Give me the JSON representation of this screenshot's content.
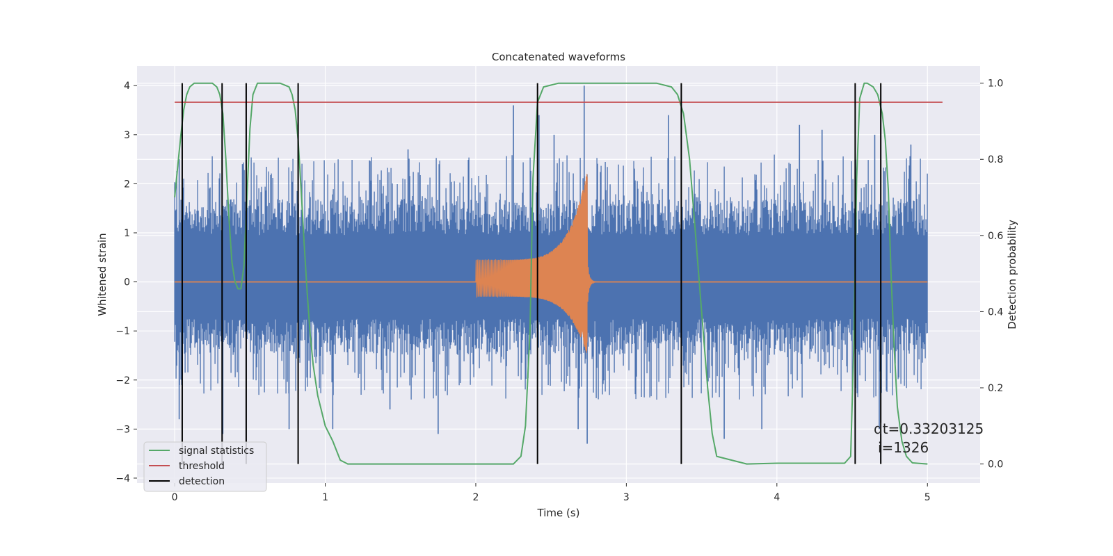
{
  "chart_data": {
    "type": "line",
    "title": "Concatenated waveforms",
    "xlabel": "Time (s)",
    "ylabel": "Whitened strain",
    "y2label": "Detection probability",
    "xlim": [
      -0.25,
      5.35
    ],
    "ylim": [
      -4.1,
      4.4
    ],
    "y2lim": [
      -0.05,
      1.045
    ],
    "xticks": [
      0,
      1,
      2,
      3,
      4,
      5
    ],
    "yticks": [
      -4,
      -3,
      -2,
      -1,
      0,
      1,
      2,
      3,
      4
    ],
    "y2ticks": [
      0.0,
      0.2,
      0.4,
      0.6,
      0.8,
      1.0
    ],
    "xtick_labels": [
      "0",
      "1",
      "2",
      "3",
      "4",
      "5"
    ],
    "ytick_labels": [
      "−4",
      "−3",
      "−2",
      "−1",
      "0",
      "1",
      "2",
      "3",
      "4"
    ],
    "y2tick_labels": [
      "0.0",
      "0.2",
      "0.4",
      "0.6",
      "0.8",
      "1.0"
    ],
    "grid": true,
    "background": "#eaeaf2",
    "legend_position": "lower-left",
    "series": [
      {
        "kind": "noise_envelope",
        "color": "#4c72b0",
        "x_range": [
          0,
          5
        ],
        "band": [
          -0.75,
          0.95
        ],
        "max_envelope": 2.6,
        "min_envelope": -2.4,
        "spikes": [
          [
            0.03,
            2.5
          ],
          [
            0.03,
            -2.8
          ],
          [
            0.32,
            -3.1
          ],
          [
            0.45,
            2.4
          ],
          [
            0.76,
            -3.0
          ],
          [
            1.05,
            -3.0
          ],
          [
            1.43,
            -2.6
          ],
          [
            1.55,
            2.7
          ],
          [
            1.75,
            -3.1
          ],
          [
            2.25,
            3.6
          ],
          [
            2.42,
            3.4
          ],
          [
            2.52,
            3.0
          ],
          [
            2.72,
            4.0
          ],
          [
            2.74,
            -3.3
          ],
          [
            2.68,
            -3.0
          ],
          [
            3.28,
            3.4
          ],
          [
            3.65,
            -3.2
          ],
          [
            3.9,
            -3.0
          ],
          [
            4.15,
            3.2
          ],
          [
            4.3,
            3.1
          ],
          [
            4.65,
            3.0
          ],
          [
            4.68,
            -3.0
          ],
          [
            4.89,
            2.8
          ]
        ]
      },
      {
        "kind": "chirp",
        "color": "#dd8452",
        "x_range": [
          0,
          5
        ],
        "chirp_start": 2.0,
        "merger": 2.74,
        "amp_start": 0.45,
        "amp_peak": 2.25,
        "amp_min_peak": -1.5
      },
      {
        "name": "signal statistics",
        "axis": "right",
        "color": "#55a868",
        "x": [
          0,
          0.02,
          0.04,
          0.06,
          0.08,
          0.1,
          0.13,
          0.16,
          0.2,
          0.25,
          0.28,
          0.3,
          0.32,
          0.34,
          0.36,
          0.38,
          0.4,
          0.42,
          0.44,
          0.46,
          0.48,
          0.5,
          0.52,
          0.55,
          0.6,
          0.7,
          0.76,
          0.78,
          0.8,
          0.82,
          0.84,
          0.86,
          0.88,
          0.9,
          0.92,
          0.95,
          1.0,
          1.05,
          1.08,
          1.1,
          1.15,
          2.0,
          2.25,
          2.3,
          2.33,
          2.36,
          2.38,
          2.41,
          2.45,
          2.55,
          3.2,
          3.3,
          3.34,
          3.38,
          3.42,
          3.46,
          3.5,
          3.54,
          3.57,
          3.6,
          3.8,
          4.0,
          4.45,
          4.49,
          4.51,
          4.53,
          4.55,
          4.58,
          4.6,
          4.64,
          4.67,
          4.7,
          4.72,
          4.74,
          4.76,
          4.78,
          4.8,
          4.83,
          4.86,
          4.9,
          5.0
        ],
        "y": [
          0.7,
          0.78,
          0.86,
          0.93,
          0.97,
          0.99,
          1.0,
          1.0,
          1.0,
          1.0,
          0.99,
          0.97,
          0.92,
          0.8,
          0.65,
          0.53,
          0.48,
          0.46,
          0.46,
          0.52,
          0.7,
          0.88,
          0.97,
          1.0,
          1.0,
          1.0,
          0.99,
          0.97,
          0.93,
          0.85,
          0.72,
          0.58,
          0.45,
          0.34,
          0.26,
          0.18,
          0.1,
          0.06,
          0.03,
          0.01,
          0.0,
          0.0,
          0.0,
          0.02,
          0.1,
          0.35,
          0.75,
          0.95,
          0.99,
          1.0,
          1.0,
          0.99,
          0.97,
          0.92,
          0.8,
          0.6,
          0.4,
          0.2,
          0.08,
          0.02,
          0.0,
          0.002,
          0.002,
          0.02,
          0.3,
          0.75,
          0.96,
          1.0,
          1.0,
          0.99,
          0.97,
          0.92,
          0.85,
          0.72,
          0.48,
          0.3,
          0.15,
          0.06,
          0.02,
          0.003,
          0.0
        ]
      },
      {
        "name": "threshold",
        "axis": "right",
        "color": "#c44e52",
        "x": [
          0,
          5.1
        ],
        "y": [
          0.95,
          0.95
        ]
      },
      {
        "name": "detection",
        "axis": "right",
        "color": "#000000",
        "x": [
          0.05,
          0.315,
          0.475,
          0.82,
          2.41,
          3.365,
          4.52,
          4.69
        ],
        "y_range": [
          0.0,
          1.0
        ]
      }
    ],
    "annotations": [
      "dt=0.33203125",
      "i=1326"
    ]
  }
}
